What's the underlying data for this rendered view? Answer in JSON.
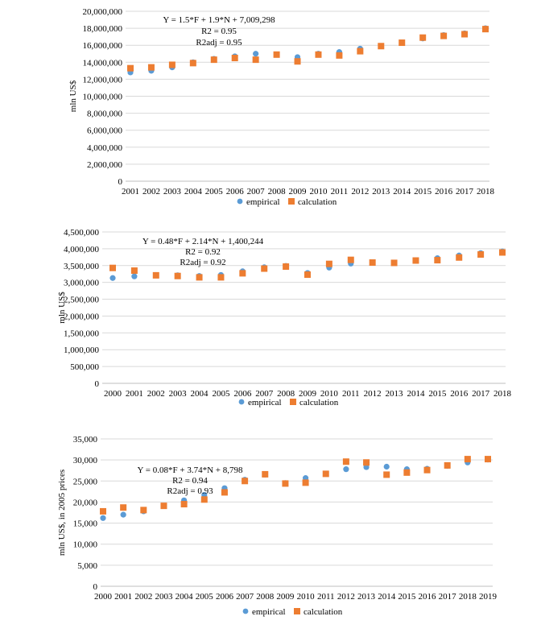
{
  "colors": {
    "empirical": "#5B9BD5",
    "calculation": "#ED7D31",
    "grid": "#d9d9d9"
  },
  "chart_data": [
    {
      "type": "scatter",
      "title": "",
      "xlabel": "",
      "ylabel": "mln US$",
      "ylim": [
        0,
        20000000
      ],
      "ytick_step": 2000000,
      "x": [
        2001,
        2002,
        2003,
        2004,
        2005,
        2006,
        2007,
        2008,
        2009,
        2010,
        2011,
        2012,
        2013,
        2014,
        2015,
        2016,
        2017,
        2018
      ],
      "ytick_labels": [
        "0",
        "2,000,000",
        "4,000,000",
        "6,000,000",
        "8,000,000",
        "10,000,000",
        "12,000,000",
        "14,000,000",
        "16,000,000",
        "18,000,000",
        "20,000,000"
      ],
      "series": [
        {
          "name": "empirical",
          "values": [
            12800000,
            13000000,
            13400000,
            14000000,
            14400000,
            14700000,
            15000000,
            14900000,
            14600000,
            15000000,
            15200000,
            15600000,
            15900000,
            16300000,
            16800000,
            17200000,
            17400000,
            18000000
          ]
        },
        {
          "name": "calculation",
          "values": [
            13300000,
            13400000,
            13700000,
            13900000,
            14300000,
            14500000,
            14300000,
            14900000,
            14100000,
            14900000,
            14800000,
            15300000,
            15900000,
            16300000,
            16900000,
            17100000,
            17300000,
            17900000
          ]
        }
      ],
      "annotations": [
        "Y = 1.5*F + 1.9*N + 7,009,298",
        "R2 = 0.95",
        "R2adj = 0.95"
      ],
      "legend": [
        "empirical",
        "calculation"
      ],
      "legend_position": "bottom"
    },
    {
      "type": "scatter",
      "title": "",
      "xlabel": "",
      "ylabel": "mln US$",
      "ylim": [
        0,
        4500000
      ],
      "ytick_step": 500000,
      "x": [
        2000,
        2001,
        2002,
        2003,
        2004,
        2005,
        2006,
        2007,
        2008,
        2009,
        2010,
        2011,
        2012,
        2013,
        2014,
        2015,
        2016,
        2017,
        2018
      ],
      "ytick_labels": [
        "0",
        "500,000",
        "1,000,000",
        "1,500,000",
        "2,000,000",
        "2,500,000",
        "3,000,000",
        "3,500,000",
        "4,000,000",
        "4,500,000"
      ],
      "series": [
        {
          "name": "empirical",
          "values": [
            3130000,
            3180000,
            3220000,
            3210000,
            3190000,
            3220000,
            3330000,
            3450000,
            3490000,
            3280000,
            3440000,
            3560000,
            3590000,
            3580000,
            3660000,
            3720000,
            3800000,
            3870000,
            3920000
          ]
        },
        {
          "name": "calculation",
          "values": [
            3430000,
            3350000,
            3210000,
            3190000,
            3150000,
            3150000,
            3270000,
            3410000,
            3470000,
            3230000,
            3550000,
            3670000,
            3590000,
            3580000,
            3650000,
            3660000,
            3740000,
            3830000,
            3890000
          ]
        }
      ],
      "annotations": [
        "Y = 0.48*F + 2.14*N + 1,400,244",
        "R2 = 0.92",
        "R2adj = 0.92"
      ],
      "legend": [
        "empirical",
        "calculation"
      ],
      "legend_position": "bottom"
    },
    {
      "type": "scatter",
      "title": "",
      "xlabel": "",
      "ylabel": "mln US$, in 2005 prices",
      "ylim": [
        0,
        35000
      ],
      "ytick_step": 5000,
      "x": [
        2000,
        2001,
        2002,
        2003,
        2004,
        2005,
        2006,
        2007,
        2008,
        2009,
        2010,
        2011,
        2012,
        2013,
        2014,
        2015,
        2016,
        2017,
        2018,
        2019
      ],
      "ytick_labels": [
        "0",
        "5,000",
        "10,000",
        "15,000",
        "20,000",
        "25,000",
        "30,000",
        "35,000"
      ],
      "series": [
        {
          "name": "empirical",
          "values": [
            16200,
            17000,
            17800,
            19100,
            20400,
            21700,
            23300,
            25300,
            26500,
            24500,
            25700,
            26700,
            27800,
            28300,
            28400,
            27800,
            27900,
            28600,
            29400,
            30100
          ]
        },
        {
          "name": "calculation",
          "values": [
            17800,
            18700,
            18100,
            19100,
            19500,
            20600,
            22300,
            25000,
            26600,
            24400,
            24600,
            26700,
            29600,
            29400,
            26500,
            27000,
            27600,
            28700,
            30200,
            30200
          ]
        }
      ],
      "annotations": [
        "Y = 0.08*F + 3.74*N + 8,798",
        "R2 = 0.94",
        "R2adj = 0.93"
      ],
      "legend": [
        "empirical",
        "calculation"
      ],
      "legend_position": "bottom"
    }
  ]
}
